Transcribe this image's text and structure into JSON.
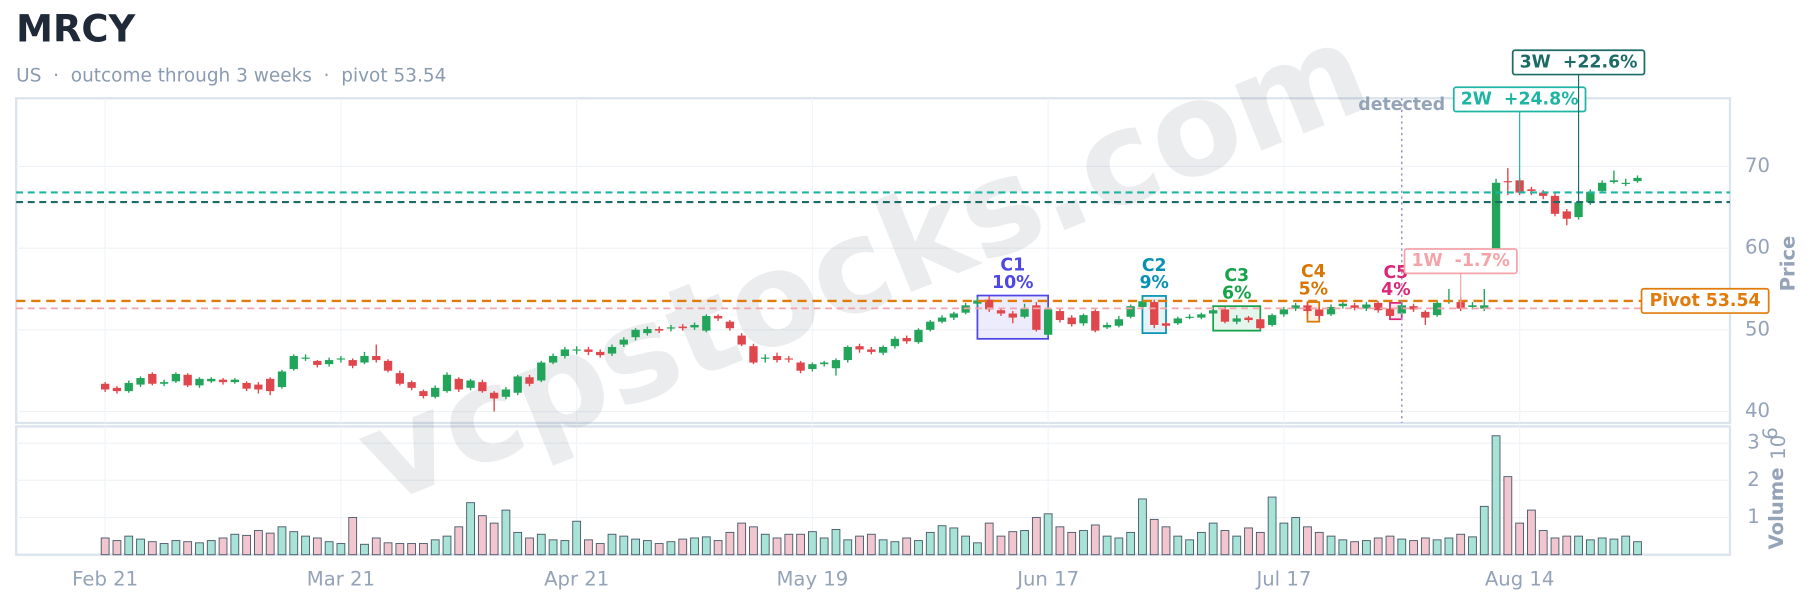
{
  "title": "MRCY",
  "subtitle": "US  ·  outcome through 3 weeks  ·  pivot 53.54",
  "watermark": "vcpstocks.com",
  "chart_data": {
    "type": "candlestick",
    "ylabel": "Price",
    "y2label": "Volume",
    "y2unit_base": "10",
    "y2unit_exp": "6",
    "up_color": "#22a55b",
    "down_color": "#e0474c",
    "volume_up_color": "#a7e3d6",
    "volume_down_color": "#f3c6cf",
    "grid": true,
    "ylim": [
      38.6,
      78.35
    ],
    "yticks": [
      40,
      50,
      60,
      70
    ],
    "y2lim": [
      0,
      3.45
    ],
    "y2ticks": [
      1,
      2,
      3
    ],
    "categories": [
      "Feb 21",
      null,
      null,
      null,
      null,
      null,
      null,
      null,
      null,
      null,
      null,
      null,
      null,
      null,
      null,
      null,
      null,
      null,
      null,
      null,
      "Mar 21",
      null,
      null,
      null,
      null,
      null,
      null,
      null,
      null,
      null,
      null,
      null,
      null,
      null,
      null,
      null,
      null,
      null,
      null,
      null,
      "Apr 21",
      null,
      null,
      null,
      null,
      null,
      null,
      null,
      null,
      null,
      null,
      null,
      null,
      null,
      null,
      null,
      null,
      null,
      null,
      null,
      "May 19",
      null,
      null,
      null,
      null,
      null,
      null,
      null,
      null,
      null,
      null,
      null,
      null,
      null,
      null,
      null,
      null,
      null,
      null,
      null,
      "Jun 17",
      null,
      null,
      null,
      null,
      null,
      null,
      null,
      null,
      null,
      null,
      null,
      null,
      null,
      null,
      null,
      null,
      null,
      null,
      null,
      "Jul 17",
      null,
      null,
      null,
      null,
      null,
      null,
      null,
      null,
      null,
      null,
      null,
      null,
      null,
      null,
      null,
      null,
      null,
      null,
      null,
      "Aug 14",
      null,
      null,
      null,
      null,
      null,
      null,
      null,
      null,
      null,
      null
    ],
    "open": [
      43.4,
      42.9,
      42.5,
      43.3,
      44.6,
      43.4,
      43.7,
      44.5,
      43.2,
      43.7,
      43.9,
      43.6,
      43.5,
      43.3,
      44.0,
      43.0,
      45.2,
      46.5,
      46.2,
      45.8,
      46.4,
      46.3,
      46.0,
      46.8,
      46.2,
      44.7,
      43.6,
      42.5,
      41.8,
      42.5,
      44.0,
      42.9,
      43.6,
      42.3,
      41.8,
      42.3,
      44.2,
      43.8,
      46.0,
      46.8,
      47.5,
      47.6,
      47.3,
      47.1,
      48.2,
      49.1,
      49.6,
      50.1,
      50.2,
      50.4,
      50.3,
      49.9,
      51.7,
      51.0,
      49.3,
      48.0,
      46.5,
      46.8,
      46.5,
      46.0,
      45.2,
      45.8,
      45.3,
      46.3,
      48.0,
      47.6,
      47.2,
      48.0,
      49.0,
      48.5,
      50.0,
      51.0,
      51.5,
      52.1,
      53.2,
      53.7,
      52.4,
      52.0,
      51.6,
      53.0,
      49.4,
      52.3,
      51.5,
      50.8,
      52.3,
      50.3,
      50.5,
      51.6,
      52.8,
      53.4,
      50.8,
      50.8,
      51.5,
      51.5,
      52.0,
      52.5,
      51.0,
      51.5,
      51.3,
      50.6,
      51.9,
      52.6,
      53.0,
      52.5,
      51.9,
      52.9,
      53.0,
      52.6,
      53.3,
      52.6,
      52.0,
      52.9,
      52.2,
      51.8,
      53.4,
      53.4,
      52.8,
      52.6,
      59.8,
      68.2,
      68.3,
      67.2,
      66.8,
      66.4,
      64.5,
      63.8,
      65.6,
      67.0,
      68.1,
      68.0,
      68.2
    ],
    "high": [
      43.6,
      43.1,
      43.8,
      44.3,
      44.8,
      43.9,
      44.8,
      44.7,
      44.2,
      44.2,
      44.1,
      44.1,
      43.7,
      43.6,
      44.2,
      45.1,
      47.0,
      47.0,
      46.3,
      46.6,
      46.8,
      46.5,
      47.3,
      48.2,
      46.4,
      45.0,
      43.8,
      42.7,
      43.2,
      44.8,
      44.2,
      44.0,
      43.9,
      42.5,
      43.0,
      44.5,
      44.5,
      46.2,
      47.1,
      47.9,
      48.0,
      47.9,
      47.6,
      48.2,
      49.1,
      50.2,
      50.4,
      50.4,
      50.6,
      50.7,
      50.9,
      51.9,
      51.9,
      51.2,
      49.6,
      48.3,
      47.0,
      47.2,
      46.8,
      46.2,
      46.0,
      46.2,
      46.5,
      48.1,
      48.3,
      47.9,
      48.1,
      49.2,
      49.3,
      50.2,
      51.2,
      51.8,
      52.2,
      53.3,
      54.0,
      54.1,
      52.6,
      52.3,
      53.2,
      53.4,
      52.9,
      52.6,
      51.8,
      52.0,
      52.5,
      50.9,
      51.7,
      53.1,
      54.0,
      53.7,
      51.0,
      51.6,
      51.9,
      52.1,
      52.6,
      52.8,
      51.8,
      51.7,
      51.5,
      52.0,
      52.8,
      53.3,
      53.3,
      52.8,
      53.1,
      53.4,
      53.3,
      53.4,
      53.5,
      52.8,
      53.3,
      53.2,
      52.4,
      53.6,
      55.0,
      54.0,
      53.4,
      55.0,
      68.5,
      69.8,
      68.6,
      67.5,
      67.1,
      66.7,
      64.8,
      65.9,
      67.2,
      68.3,
      69.5,
      68.5,
      68.9
    ],
    "low": [
      42.4,
      42.2,
      42.3,
      43.0,
      43.2,
      43.1,
      43.5,
      43.0,
      42.9,
      43.5,
      43.3,
      43.4,
      42.5,
      42.2,
      42.0,
      42.8,
      45.0,
      46.2,
      45.4,
      45.5,
      46.0,
      45.3,
      45.8,
      46.0,
      44.8,
      43.2,
      42.6,
      41.6,
      41.6,
      42.3,
      42.4,
      42.6,
      42.3,
      40.0,
      41.5,
      42.0,
      43.1,
      43.6,
      45.8,
      46.5,
      47.0,
      46.9,
      46.6,
      46.8,
      47.9,
      48.7,
      49.3,
      49.6,
      49.8,
      49.9,
      50.0,
      49.7,
      51.1,
      49.9,
      48.0,
      45.8,
      46.0,
      46.0,
      46.0,
      44.7,
      44.9,
      45.5,
      44.4,
      46.0,
      47.2,
      47.0,
      46.9,
      47.7,
      48.3,
      48.3,
      49.8,
      50.8,
      51.2,
      51.9,
      52.9,
      52.2,
      51.7,
      50.8,
      51.4,
      49.8,
      49.2,
      50.9,
      50.4,
      50.5,
      49.7,
      50.1,
      50.3,
      51.4,
      52.6,
      50.2,
      50.2,
      50.6,
      51.3,
      51.3,
      51.8,
      50.8,
      50.7,
      50.9,
      50.0,
      50.4,
      51.6,
      52.3,
      52.0,
      51.3,
      51.7,
      52.6,
      52.4,
      52.3,
      52.1,
      51.4,
      51.8,
      52.2,
      50.6,
      51.6,
      53.2,
      52.3,
      52.5,
      52.3,
      58.0,
      66.5,
      66.5,
      66.5,
      66.0,
      63.9,
      62.8,
      63.5,
      65.3,
      66.8,
      67.9,
      67.6,
      68.0
    ],
    "close": [
      42.7,
      42.5,
      43.5,
      44.1,
      43.4,
      43.6,
      44.6,
      43.2,
      44.0,
      44.0,
      43.6,
      43.9,
      42.8,
      42.7,
      42.5,
      44.9,
      46.8,
      46.6,
      45.7,
      46.3,
      46.5,
      45.6,
      46.8,
      46.3,
      45.0,
      43.4,
      42.9,
      41.9,
      42.9,
      44.5,
      42.7,
      43.8,
      42.5,
      41.6,
      42.7,
      44.3,
      43.4,
      46.0,
      46.8,
      47.6,
      47.6,
      47.3,
      46.9,
      47.9,
      48.8,
      50.0,
      50.1,
      49.9,
      50.3,
      50.2,
      50.6,
      51.7,
      51.4,
      50.2,
      48.2,
      46.0,
      46.6,
      46.3,
      46.4,
      45.0,
      45.8,
      46.0,
      46.3,
      47.9,
      47.6,
      47.3,
      47.9,
      48.9,
      48.6,
      50.0,
      51.0,
      51.5,
      52.0,
      53.0,
      53.6,
      52.5,
      52.0,
      51.5,
      52.6,
      50.0,
      52.5,
      51.2,
      50.7,
      51.8,
      49.9,
      50.6,
      51.3,
      52.9,
      53.5,
      50.6,
      50.5,
      51.4,
      51.6,
      51.9,
      52.4,
      51.0,
      51.4,
      51.2,
      50.2,
      51.8,
      52.5,
      53.0,
      52.3,
      51.7,
      52.8,
      53.2,
      52.7,
      53.1,
      52.4,
      51.7,
      53.0,
      52.5,
      51.5,
      53.3,
      53.6,
      52.6,
      53.0,
      53.0,
      68.0,
      68.1,
      66.8,
      67.0,
      66.4,
      64.2,
      63.6,
      65.6,
      66.9,
      68.0,
      68.3,
      68.0,
      68.6
    ],
    "volume": [
      0.45,
      0.38,
      0.5,
      0.42,
      0.35,
      0.3,
      0.38,
      0.35,
      0.32,
      0.38,
      0.45,
      0.55,
      0.52,
      0.65,
      0.58,
      0.75,
      0.62,
      0.5,
      0.45,
      0.35,
      0.3,
      1.0,
      0.28,
      0.45,
      0.32,
      0.3,
      0.3,
      0.3,
      0.4,
      0.5,
      0.75,
      1.4,
      1.05,
      0.85,
      1.2,
      0.6,
      0.45,
      0.55,
      0.4,
      0.38,
      0.9,
      0.4,
      0.3,
      0.55,
      0.5,
      0.42,
      0.38,
      0.3,
      0.35,
      0.42,
      0.45,
      0.48,
      0.38,
      0.6,
      0.85,
      0.75,
      0.55,
      0.45,
      0.55,
      0.55,
      0.62,
      0.45,
      0.68,
      0.4,
      0.5,
      0.55,
      0.4,
      0.35,
      0.45,
      0.38,
      0.6,
      0.78,
      0.72,
      0.5,
      0.32,
      0.85,
      0.5,
      0.62,
      0.65,
      1.0,
      1.1,
      0.75,
      0.6,
      0.65,
      0.8,
      0.5,
      0.45,
      0.6,
      1.5,
      0.95,
      0.75,
      0.5,
      0.4,
      0.6,
      0.85,
      0.65,
      0.5,
      0.72,
      0.6,
      1.55,
      0.85,
      1.0,
      0.75,
      0.6,
      0.5,
      0.4,
      0.35,
      0.38,
      0.45,
      0.5,
      0.42,
      0.38,
      0.45,
      0.4,
      0.45,
      0.55,
      0.48,
      1.3,
      3.2,
      2.1,
      0.85,
      1.2,
      0.65,
      0.45,
      0.5,
      0.5,
      0.4,
      0.45,
      0.42,
      0.5,
      0.35
    ],
    "pivot": {
      "label": "Pivot 53.54",
      "value": 53.54,
      "color": "#e07b0c"
    },
    "detected": {
      "label": "detected",
      "bar": 110,
      "color": "#94a3b8"
    },
    "outcomes": [
      {
        "label": "1W  -1.7%",
        "price": 52.63,
        "bar": 115,
        "color": "#f4a3a8"
      },
      {
        "label": "2W  +24.8%",
        "price": 66.82,
        "bar": 120,
        "color": "#1fb5a3"
      },
      {
        "label": "3W  +22.6%",
        "price": 65.64,
        "bar": 125,
        "color": "#1c6b66"
      }
    ],
    "contractions": [
      {
        "label": "C1",
        "depth": "10%",
        "start": 74,
        "end": 80,
        "high": 54.2,
        "low": 48.9,
        "color": "#4f46e5"
      },
      {
        "label": "C2",
        "depth": "9%",
        "start": 88,
        "end": 90,
        "high": 54.15,
        "low": 49.6,
        "color": "#0891b2"
      },
      {
        "label": "C3",
        "depth": "6%",
        "start": 94,
        "end": 98,
        "high": 52.9,
        "low": 49.9,
        "color": "#16a34a"
      },
      {
        "label": "C4",
        "depth": "5%",
        "start": 102,
        "end": 103,
        "high": 53.4,
        "low": 51.0,
        "color": "#d97706"
      },
      {
        "label": "C5",
        "depth": "4%",
        "start": 109,
        "end": 110,
        "high": 53.3,
        "low": 51.3,
        "color": "#db2777"
      }
    ]
  }
}
